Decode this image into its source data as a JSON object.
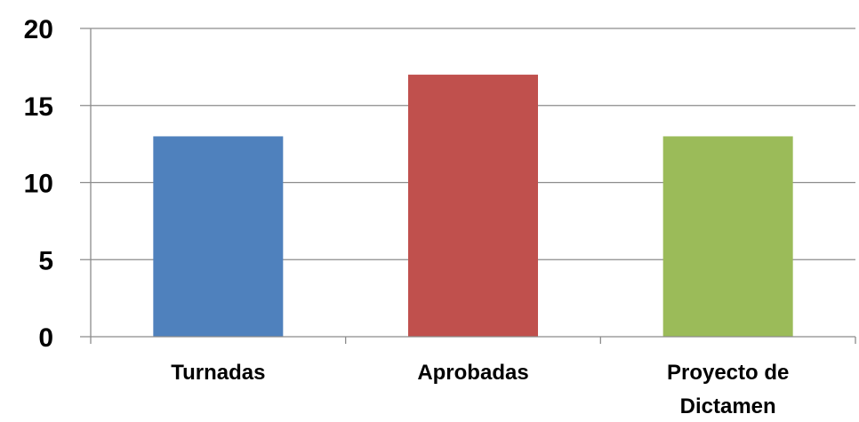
{
  "chart_data": {
    "type": "bar",
    "categories": [
      "Turnadas",
      "Aprobadas",
      "Proyecto de Dictamen"
    ],
    "category_lines": [
      [
        "Turnadas"
      ],
      [
        "Aprobadas"
      ],
      [
        "Proyecto de",
        "Dictamen"
      ]
    ],
    "values": [
      13,
      17,
      13
    ],
    "colors": [
      "#4F81BD",
      "#C0504D",
      "#9BBB59"
    ],
    "ylim": [
      0,
      20
    ],
    "yticks": [
      0,
      5,
      10,
      15,
      20
    ],
    "grid": true,
    "legend": "none"
  }
}
